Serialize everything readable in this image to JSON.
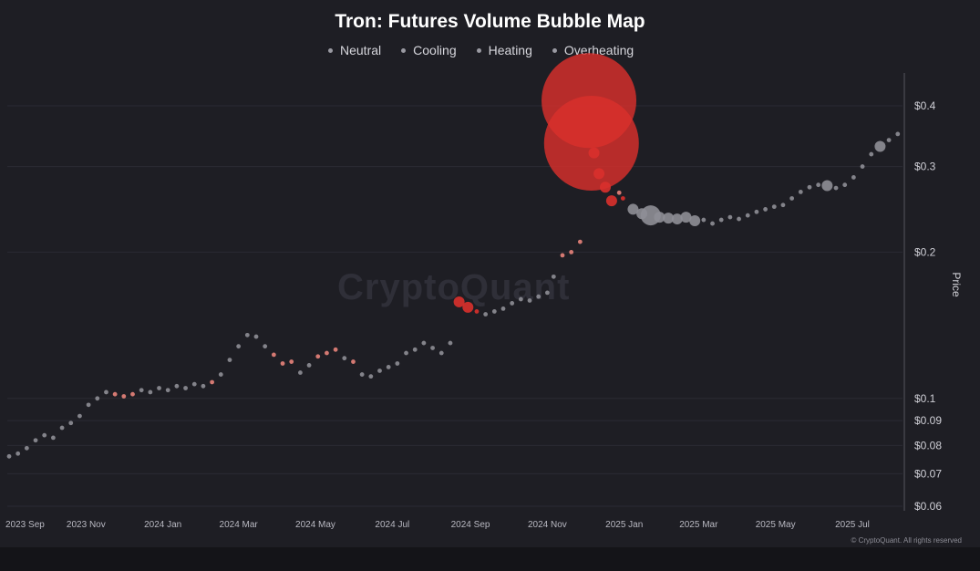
{
  "chart_data": {
    "type": "scatter",
    "title": "Tron: Futures Volume Bubble Map",
    "legend": [
      "Neutral",
      "Cooling",
      "Heating",
      "Overheating"
    ],
    "legend_placement": "top-center",
    "ylabel": "Price",
    "y_scale": "log",
    "y_ticks": [
      "$0.4",
      "$0.3",
      "$0.2",
      "$0.1",
      "$0.09",
      "$0.08",
      "$0.07",
      "$0.06"
    ],
    "y_tick_values": [
      0.4,
      0.3,
      0.2,
      0.1,
      0.09,
      0.08,
      0.07,
      0.06
    ],
    "ylim": [
      0.06,
      0.45
    ],
    "x_ticks": [
      "2023 Sep",
      "2023 Nov",
      "2024 Jan",
      "2024 Mar",
      "2024 May",
      "2024 Jul",
      "2024 Sep",
      "2024 Nov",
      "2025 Jan",
      "2025 Mar",
      "2025 May",
      "2025 Jul"
    ],
    "x_tick_dates": [
      "2023-09-01",
      "2023-11-01",
      "2024-01-01",
      "2024-03-01",
      "2024-05-01",
      "2024-07-01",
      "2024-09-01",
      "2024-11-01",
      "2025-01-01",
      "2025-03-01",
      "2025-05-01",
      "2025-07-01"
    ],
    "xlim": [
      "2023-09-01",
      "2025-08-15"
    ],
    "grid": "horizontal",
    "colors": {
      "neutral": "#8e8e96",
      "heating": "#e8837b",
      "overheating": "#d9302c",
      "background": "#1e1e24",
      "grid": "#2b2b33"
    },
    "series": [
      {
        "name": "Neutral",
        "points": [
          [
            "2023-09-01",
            0.076,
            "s"
          ],
          [
            "2023-09-08",
            0.077,
            "s"
          ],
          [
            "2023-09-15",
            0.079,
            "s"
          ],
          [
            "2023-09-22",
            0.082,
            "s"
          ],
          [
            "2023-09-29",
            0.084,
            "s"
          ],
          [
            "2023-10-06",
            0.083,
            "s"
          ],
          [
            "2023-10-13",
            0.087,
            "s"
          ],
          [
            "2023-10-20",
            0.089,
            "s"
          ],
          [
            "2023-10-27",
            0.092,
            "s"
          ],
          [
            "2023-11-03",
            0.097,
            "s"
          ],
          [
            "2023-11-10",
            0.1,
            "s"
          ],
          [
            "2023-11-17",
            0.103,
            "s"
          ],
          [
            "2023-12-15",
            0.104,
            "s"
          ],
          [
            "2023-12-22",
            0.103,
            "s"
          ],
          [
            "2023-12-29",
            0.105,
            "s"
          ],
          [
            "2024-01-05",
            0.104,
            "s"
          ],
          [
            "2024-01-12",
            0.106,
            "s"
          ],
          [
            "2024-01-19",
            0.105,
            "s"
          ],
          [
            "2024-01-26",
            0.107,
            "s"
          ],
          [
            "2024-02-02",
            0.106,
            "s"
          ],
          [
            "2024-02-16",
            0.112,
            "s"
          ],
          [
            "2024-02-23",
            0.12,
            "s"
          ],
          [
            "2024-03-01",
            0.128,
            "s"
          ],
          [
            "2024-03-08",
            0.135,
            "s"
          ],
          [
            "2024-03-15",
            0.134,
            "s"
          ],
          [
            "2024-03-22",
            0.128,
            "s"
          ],
          [
            "2024-04-19",
            0.113,
            "s"
          ],
          [
            "2024-04-26",
            0.117,
            "s"
          ],
          [
            "2024-05-24",
            0.121,
            "s"
          ],
          [
            "2024-06-07",
            0.112,
            "s"
          ],
          [
            "2024-06-14",
            0.111,
            "s"
          ],
          [
            "2024-06-21",
            0.114,
            "s"
          ],
          [
            "2024-06-28",
            0.116,
            "s"
          ],
          [
            "2024-07-05",
            0.118,
            "s"
          ],
          [
            "2024-07-12",
            0.124,
            "s"
          ],
          [
            "2024-07-19",
            0.126,
            "s"
          ],
          [
            "2024-07-26",
            0.13,
            "s"
          ],
          [
            "2024-08-02",
            0.127,
            "s"
          ],
          [
            "2024-08-09",
            0.124,
            "s"
          ],
          [
            "2024-08-16",
            0.13,
            "s"
          ],
          [
            "2024-09-13",
            0.149,
            "s"
          ],
          [
            "2024-09-20",
            0.151,
            "s"
          ],
          [
            "2024-09-27",
            0.153,
            "s"
          ],
          [
            "2024-10-04",
            0.157,
            "s"
          ],
          [
            "2024-10-11",
            0.16,
            "s"
          ],
          [
            "2024-10-18",
            0.159,
            "s"
          ],
          [
            "2024-10-25",
            0.162,
            "s"
          ],
          [
            "2024-11-01",
            0.165,
            "s"
          ],
          [
            "2024-11-06",
            0.178,
            "s"
          ],
          [
            "2025-01-08",
            0.245,
            "m"
          ],
          [
            "2025-01-15",
            0.24,
            "m"
          ],
          [
            "2025-01-22",
            0.238,
            "l"
          ],
          [
            "2025-01-29",
            0.236,
            "m"
          ],
          [
            "2025-02-05",
            0.235,
            "m"
          ],
          [
            "2025-02-12",
            0.234,
            "m"
          ],
          [
            "2025-02-19",
            0.236,
            "m"
          ],
          [
            "2025-02-26",
            0.232,
            "m"
          ],
          [
            "2025-03-05",
            0.233,
            "s"
          ],
          [
            "2025-03-12",
            0.229,
            "s"
          ],
          [
            "2025-03-19",
            0.233,
            "s"
          ],
          [
            "2025-03-26",
            0.236,
            "s"
          ],
          [
            "2025-04-02",
            0.234,
            "s"
          ],
          [
            "2025-04-09",
            0.238,
            "s"
          ],
          [
            "2025-04-16",
            0.242,
            "s"
          ],
          [
            "2025-04-23",
            0.245,
            "s"
          ],
          [
            "2025-04-30",
            0.248,
            "s"
          ],
          [
            "2025-05-07",
            0.25,
            "s"
          ],
          [
            "2025-05-14",
            0.258,
            "s"
          ],
          [
            "2025-05-21",
            0.266,
            "s"
          ],
          [
            "2025-05-28",
            0.272,
            "s"
          ],
          [
            "2025-06-04",
            0.275,
            "s"
          ],
          [
            "2025-06-11",
            0.274,
            "m"
          ],
          [
            "2025-06-18",
            0.271,
            "s"
          ],
          [
            "2025-06-25",
            0.275,
            "s"
          ],
          [
            "2025-07-02",
            0.285,
            "s"
          ],
          [
            "2025-07-09",
            0.3,
            "s"
          ],
          [
            "2025-07-16",
            0.318,
            "s"
          ],
          [
            "2025-07-23",
            0.33,
            "m"
          ],
          [
            "2025-07-30",
            0.34,
            "s"
          ],
          [
            "2025-08-06",
            0.35,
            "s"
          ]
        ]
      },
      {
        "name": "Heating",
        "points": [
          [
            "2023-11-24",
            0.102,
            "s"
          ],
          [
            "2023-12-01",
            0.101,
            "s"
          ],
          [
            "2023-12-08",
            0.102,
            "s"
          ],
          [
            "2024-02-09",
            0.108,
            "s"
          ],
          [
            "2024-03-29",
            0.123,
            "s"
          ],
          [
            "2024-04-05",
            0.118,
            "s"
          ],
          [
            "2024-04-12",
            0.119,
            "s"
          ],
          [
            "2024-05-03",
            0.122,
            "s"
          ],
          [
            "2024-05-10",
            0.124,
            "s"
          ],
          [
            "2024-05-17",
            0.126,
            "s"
          ],
          [
            "2024-05-31",
            0.119,
            "s"
          ],
          [
            "2024-11-13",
            0.197,
            "s"
          ],
          [
            "2024-11-20",
            0.2,
            "s"
          ],
          [
            "2024-11-27",
            0.21,
            "s"
          ],
          [
            "2024-12-28",
            0.265,
            "s"
          ]
        ]
      },
      {
        "name": "Overheating",
        "points": [
          [
            "2024-08-23",
            0.158,
            "m"
          ],
          [
            "2024-08-30",
            0.154,
            "m"
          ],
          [
            "2024-09-06",
            0.151,
            "s"
          ],
          [
            "2024-12-04",
            0.41,
            "xl"
          ],
          [
            "2024-12-06",
            0.335,
            "xl"
          ],
          [
            "2024-12-08",
            0.32,
            "m"
          ],
          [
            "2024-12-12",
            0.29,
            "m"
          ],
          [
            "2024-12-17",
            0.272,
            "m"
          ],
          [
            "2024-12-22",
            0.255,
            "m"
          ],
          [
            "2024-12-31",
            0.258,
            "s"
          ]
        ]
      }
    ]
  },
  "watermark": "CryptoQuant",
  "copyright": "© CryptoQuant. All rights reserved"
}
